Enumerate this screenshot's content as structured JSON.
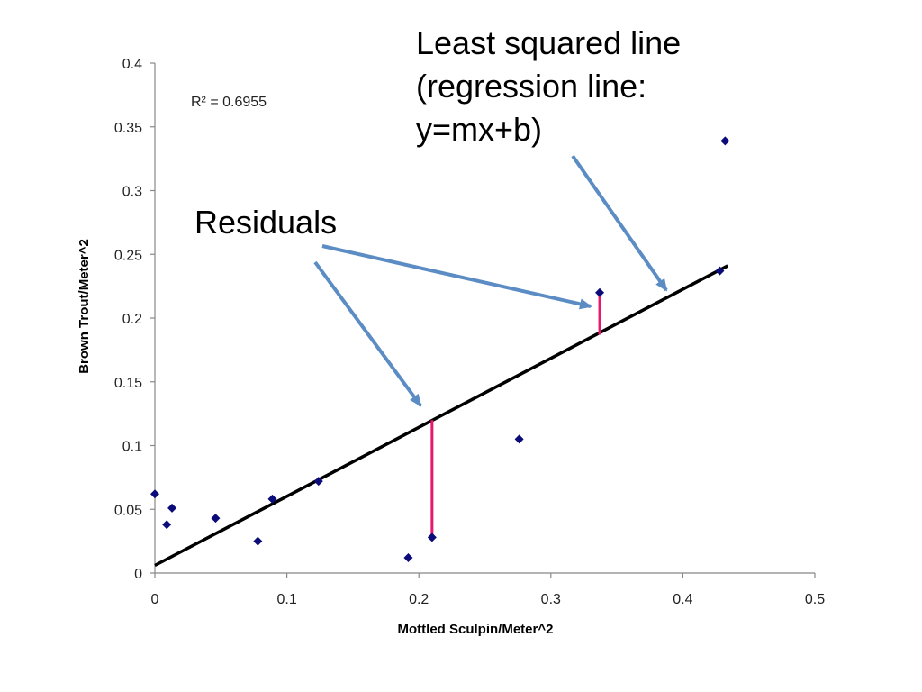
{
  "chart_data": {
    "type": "scatter",
    "xlabel": "Mottled Sculpin/Meter^2",
    "ylabel": "Brown Trout/Meter^2",
    "xlim": [
      0,
      0.5
    ],
    "ylim": [
      0,
      0.4
    ],
    "x_ticks": [
      0,
      0.1,
      0.2,
      0.3,
      0.4,
      0.5
    ],
    "x_tick_labels": [
      "0",
      "0.1",
      "0.2",
      "0.3",
      "0.4",
      "0.5"
    ],
    "y_ticks": [
      0,
      0.05,
      0.1,
      0.15,
      0.2,
      0.25,
      0.3,
      0.35,
      0.4
    ],
    "y_tick_labels": [
      "0",
      "0.05",
      "0.1",
      "0.15",
      "0.2",
      "0.25",
      "0.3",
      "0.35",
      "0.4"
    ],
    "grid": false,
    "legend": "none",
    "points": [
      {
        "x": 0.0,
        "y": 0.062
      },
      {
        "x": 0.009,
        "y": 0.038
      },
      {
        "x": 0.013,
        "y": 0.051
      },
      {
        "x": 0.046,
        "y": 0.043
      },
      {
        "x": 0.078,
        "y": 0.025
      },
      {
        "x": 0.089,
        "y": 0.058
      },
      {
        "x": 0.124,
        "y": 0.072
      },
      {
        "x": 0.192,
        "y": 0.012
      },
      {
        "x": 0.21,
        "y": 0.028
      },
      {
        "x": 0.276,
        "y": 0.105
      },
      {
        "x": 0.337,
        "y": 0.22
      },
      {
        "x": 0.428,
        "y": 0.237
      },
      {
        "x": 0.432,
        "y": 0.339
      }
    ],
    "regression_line": {
      "x1": 0.0,
      "y1": 0.006,
      "x2": 0.434,
      "y2": 0.241
    },
    "residual_highlights": [
      {
        "x": 0.21,
        "y_from": 0.028,
        "y_to": 0.12
      },
      {
        "x": 0.337,
        "y_from": 0.22,
        "y_to": 0.187
      }
    ],
    "r_squared_label": "R² = 0.6955",
    "annotations": {
      "regression_title_lines": [
        "Least squared line",
        "(regression line:",
        "y=mx+b)"
      ],
      "residuals_label": "Residuals"
    }
  },
  "colors": {
    "points": "#0b0b7a",
    "regression_line": "#000000",
    "residual": "#e8186e",
    "arrow": "#5b8dc4",
    "axis": "#888888"
  }
}
